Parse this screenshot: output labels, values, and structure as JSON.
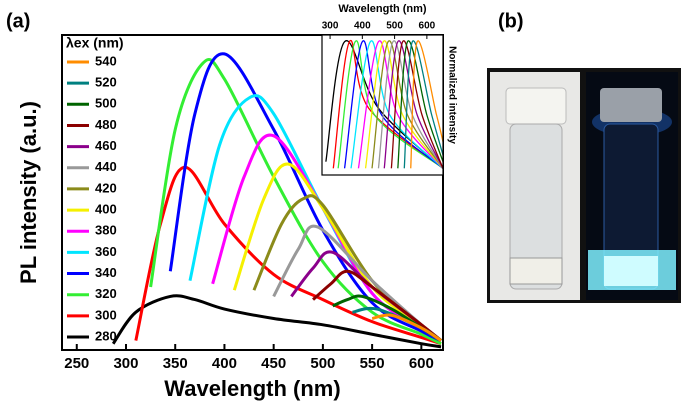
{
  "panels": {
    "a": "(a)",
    "b": "(b)"
  },
  "chart_data": [
    {
      "type": "line",
      "x_label": "Wavelength (nm)",
      "y_label": "PL intensity (a.u.)",
      "legend_title": "λex (nm)",
      "xlim": [
        235,
        622
      ],
      "xticks": [
        250,
        300,
        350,
        400,
        450,
        500,
        550,
        600
      ],
      "ylim": [
        0,
        100
      ],
      "series": [
        {
          "name": "280",
          "color": "#000000",
          "x": [
            287,
            310,
            345,
            370,
            400,
            450,
            500,
            550,
            600,
            620
          ],
          "values": [
            2,
            12,
            17,
            16,
            13,
            10,
            8,
            5,
            2,
            1
          ]
        },
        {
          "name": "300",
          "color": "#ff0000",
          "x": [
            310,
            335,
            360,
            400,
            450,
            500,
            550,
            600,
            620
          ],
          "values": [
            3,
            40,
            58,
            40,
            24,
            16,
            9,
            4,
            2
          ]
        },
        {
          "name": "320",
          "color": "#33ee33",
          "x": [
            325,
            350,
            378,
            400,
            450,
            500,
            550,
            600,
            620
          ],
          "values": [
            20,
            70,
            91,
            86,
            55,
            28,
            12,
            5,
            2
          ]
        },
        {
          "name": "340",
          "color": "#0000ff",
          "x": [
            345,
            370,
            400,
            450,
            500,
            550,
            600,
            620
          ],
          "values": [
            25,
            75,
            94,
            70,
            38,
            15,
            6,
            3
          ]
        },
        {
          "name": "360",
          "color": "#00e5ff",
          "x": [
            365,
            395,
            425,
            450,
            500,
            550,
            600,
            620
          ],
          "values": [
            22,
            65,
            80,
            75,
            45,
            18,
            7,
            3
          ]
        },
        {
          "name": "380",
          "color": "#ff00ff",
          "x": [
            388,
            420,
            450,
            500,
            550,
            600,
            620
          ],
          "values": [
            21,
            55,
            68,
            45,
            18,
            7,
            3
          ]
        },
        {
          "name": "400",
          "color": "#f5f000",
          "x": [
            410,
            440,
            465,
            500,
            550,
            600,
            620
          ],
          "values": [
            19,
            48,
            59,
            45,
            20,
            8,
            3
          ]
        },
        {
          "name": "420",
          "color": "#8b8b1a",
          "x": [
            430,
            458,
            480,
            500,
            550,
            600,
            620
          ],
          "values": [
            19,
            40,
            48,
            46,
            22,
            8,
            3
          ]
        },
        {
          "name": "440",
          "color": "#999999",
          "x": [
            450,
            475,
            495,
            550,
            600,
            620
          ],
          "values": [
            17,
            32,
            39,
            22,
            8,
            3
          ]
        },
        {
          "name": "460",
          "color": "#8b008b",
          "x": [
            468,
            490,
            510,
            550,
            600,
            620
          ],
          "values": [
            17,
            26,
            31,
            20,
            8,
            3
          ]
        },
        {
          "name": "480",
          "color": "#8b0000",
          "x": [
            490,
            508,
            525,
            550,
            600,
            620
          ],
          "values": [
            16,
            21,
            25,
            20,
            8,
            3
          ]
        },
        {
          "name": "500",
          "color": "#006400",
          "x": [
            510,
            525,
            540,
            570,
            600,
            620
          ],
          "values": [
            14,
            16,
            17,
            13,
            7,
            3
          ]
        },
        {
          "name": "520",
          "color": "#008080",
          "x": [
            530,
            555,
            600,
            620
          ],
          "values": [
            12,
            13,
            7,
            3
          ]
        },
        {
          "name": "540",
          "color": "#ff8c00",
          "x": [
            550,
            570,
            600,
            620
          ],
          "values": [
            10,
            11,
            7,
            3
          ]
        }
      ]
    },
    {
      "type": "line",
      "x_label": "Wavelength (nm)",
      "y_label": "Normalized intensity",
      "xlim": [
        275,
        650
      ],
      "xticks": [
        300,
        400,
        500,
        600
      ],
      "ylim": [
        0,
        1.05
      ],
      "series": [
        {
          "color": "#000000",
          "x": [
            287,
            345,
            450,
            650
          ],
          "values": [
            0.1,
            1,
            0.5,
            0.05
          ]
        },
        {
          "color": "#ff0000",
          "x": [
            310,
            360,
            420,
            650
          ],
          "values": [
            0.05,
            1,
            0.5,
            0.05
          ]
        },
        {
          "color": "#33ee33",
          "x": [
            325,
            378,
            438,
            650
          ],
          "values": [
            0.05,
            1,
            0.45,
            0.05
          ]
        },
        {
          "color": "#0000ff",
          "x": [
            345,
            400,
            460,
            650
          ],
          "values": [
            0.05,
            1,
            0.45,
            0.05
          ]
        },
        {
          "color": "#00e5ff",
          "x": [
            365,
            425,
            485,
            650
          ],
          "values": [
            0.05,
            1,
            0.45,
            0.05
          ]
        },
        {
          "color": "#ff00ff",
          "x": [
            388,
            450,
            510,
            650
          ],
          "values": [
            0.05,
            1,
            0.45,
            0.05
          ]
        },
        {
          "color": "#f5f000",
          "x": [
            410,
            465,
            525,
            650
          ],
          "values": [
            0.05,
            1,
            0.45,
            0.05
          ]
        },
        {
          "color": "#8b8b1a",
          "x": [
            430,
            480,
            540,
            650
          ],
          "values": [
            0.05,
            1,
            0.45,
            0.05
          ]
        },
        {
          "color": "#999999",
          "x": [
            450,
            495,
            555,
            650
          ],
          "values": [
            0.05,
            1,
            0.45,
            0.05
          ]
        },
        {
          "color": "#8b008b",
          "x": [
            468,
            510,
            570,
            650
          ],
          "values": [
            0.05,
            1,
            0.45,
            0.05
          ]
        },
        {
          "color": "#8b0000",
          "x": [
            490,
            525,
            585,
            650
          ],
          "values": [
            0.05,
            1,
            0.45,
            0.05
          ]
        },
        {
          "color": "#006400",
          "x": [
            510,
            540,
            600,
            650
          ],
          "values": [
            0.05,
            1,
            0.45,
            0.1
          ]
        },
        {
          "color": "#008080",
          "x": [
            530,
            555,
            615,
            650
          ],
          "values": [
            0.05,
            1,
            0.45,
            0.15
          ]
        },
        {
          "color": "#ff8c00",
          "x": [
            550,
            570,
            630,
            650
          ],
          "values": [
            0.05,
            1,
            0.45,
            0.25
          ]
        }
      ]
    }
  ]
}
